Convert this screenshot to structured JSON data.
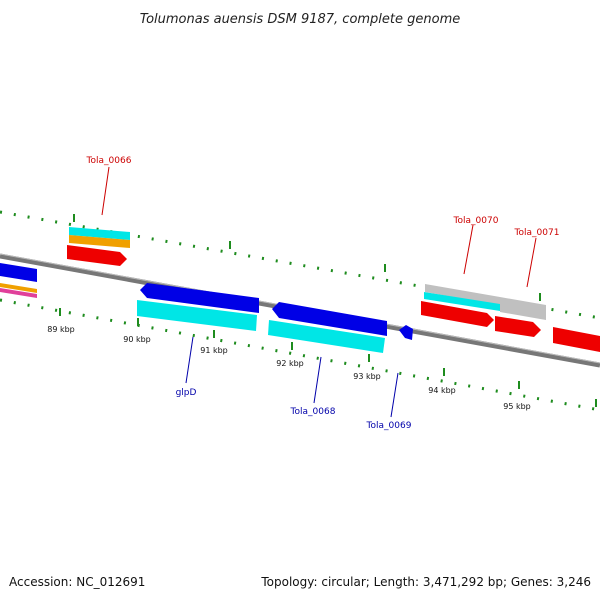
{
  "title": "Tolumonas auensis DSM 9187, complete genome",
  "footer": {
    "accession": "Accession: NC_012691",
    "topology": "Topology: circular; Length: 3,471,292 bp; Genes: 3,246"
  },
  "colors": {
    "backbone": "#888888",
    "tick": "#1e8c1e",
    "label_top": "#cc0000",
    "label_bottom": "#0000aa",
    "blue": "#0000e6",
    "cyan": "#00e6e6",
    "red": "#ee0000",
    "orange": "#f0a000",
    "grey": "#c0c0c0",
    "magenta": "#e0409a"
  },
  "ticks": [
    "89 kbp",
    "90 kbp",
    "91 kbp",
    "92 kbp",
    "93 kbp",
    "94 kbp",
    "95 kbp"
  ],
  "gene_labels_top": [
    "Tola_0066",
    "Tola_0070",
    "Tola_0071"
  ],
  "gene_labels_bottom": [
    "glpD",
    "Tola_0068",
    "Tola_0069"
  ]
}
